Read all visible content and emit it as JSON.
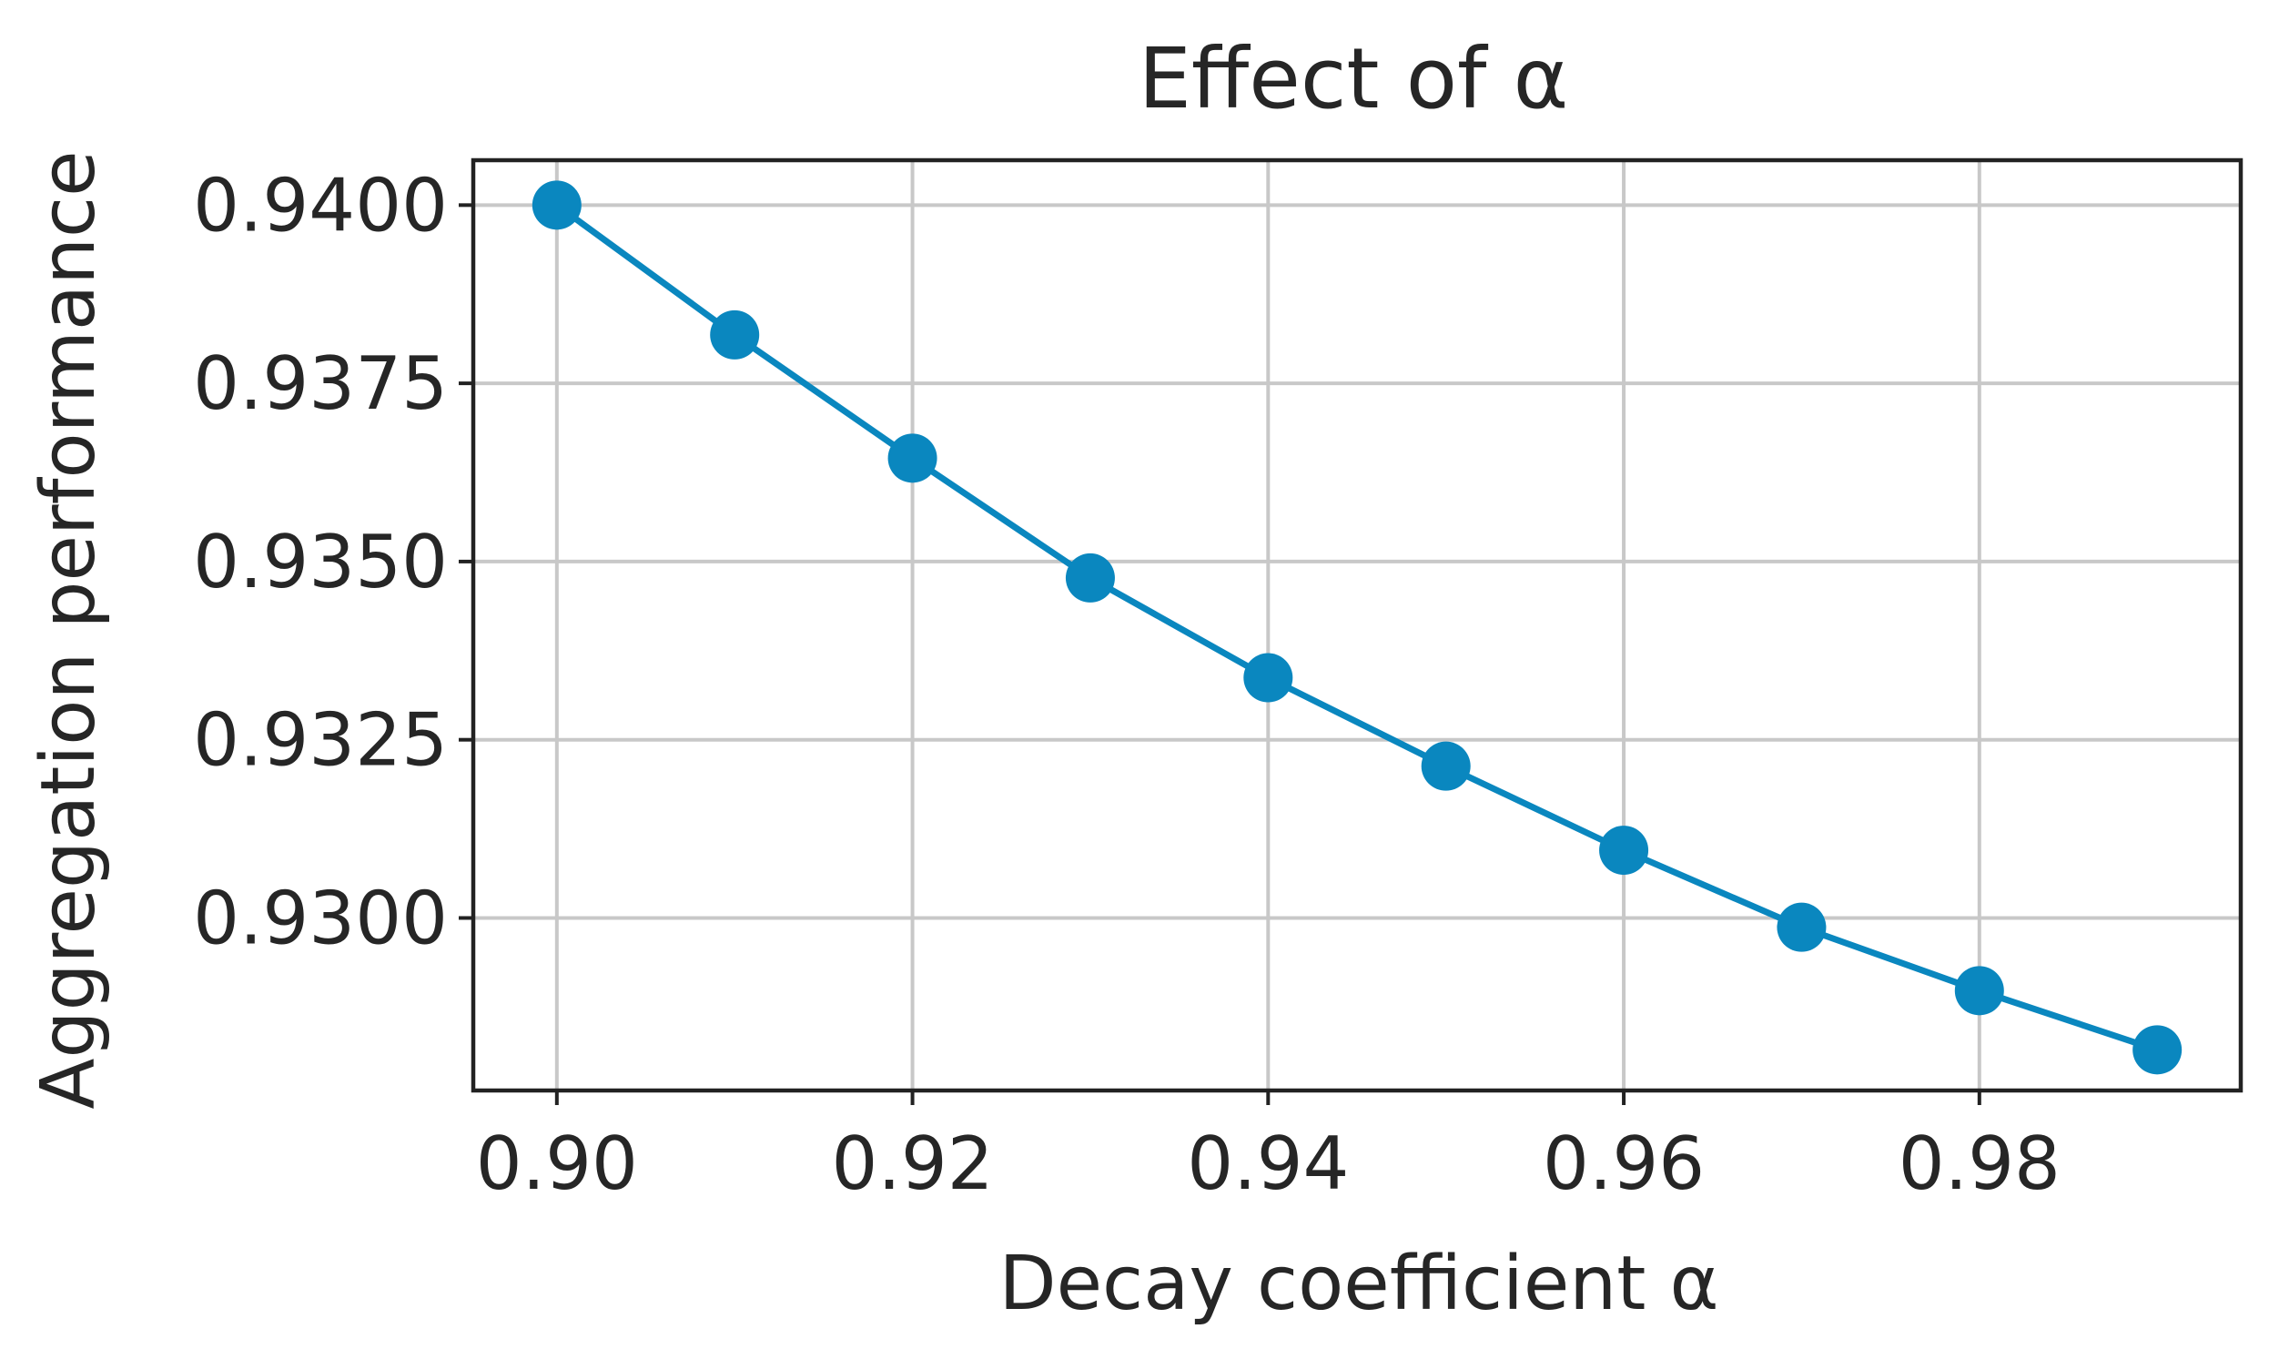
{
  "chart_data": {
    "type": "line",
    "title": "Effect of α",
    "xlabel": "Decay coefficient α",
    "ylabel": "Aggregation performance",
    "xlim": [
      0.8953,
      0.9947
    ],
    "ylim": [
      0.92758,
      0.94063
    ],
    "x_ticks": [
      0.9,
      0.92,
      0.94,
      0.96,
      0.98
    ],
    "x_tick_labels": [
      "0.90",
      "0.92",
      "0.94",
      "0.96",
      "0.98"
    ],
    "y_ticks": [
      0.93,
      0.9325,
      0.935,
      0.9375,
      0.94
    ],
    "y_tick_labels": [
      "0.9300",
      "0.9325",
      "0.9350",
      "0.9375",
      "0.9400"
    ],
    "grid": true,
    "series": [
      {
        "color": "#0a87bf",
        "marker": "circle",
        "x": [
          0.9,
          0.91,
          0.92,
          0.93,
          0.94,
          0.95,
          0.96,
          0.97,
          0.98,
          0.99
        ],
        "y": [
          0.94,
          0.93818,
          0.93645,
          0.93477,
          0.93337,
          0.93213,
          0.93095,
          0.92987,
          0.92898,
          0.92815
        ]
      }
    ]
  }
}
